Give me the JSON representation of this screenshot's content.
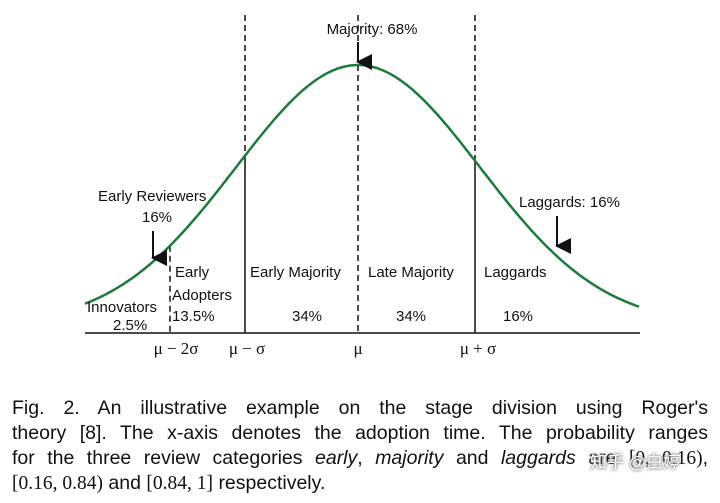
{
  "figure": {
    "majority": "Majority: 68%",
    "early_reviewers": [
      "Early Reviewers",
      "16%"
    ],
    "laggards_callout": "Laggards: 16%",
    "innovators": [
      "Innovators",
      "2.5%"
    ],
    "early_adopters": [
      "Early",
      "Adopters",
      "13.5%"
    ],
    "early_majority": [
      "Early Majority",
      "34%"
    ],
    "late_majority": [
      "Late Majority",
      "34%"
    ],
    "laggards": [
      "Laggards",
      "16%"
    ],
    "x_labels": [
      "μ − 2σ",
      "μ − σ",
      "μ",
      "μ + σ"
    ]
  },
  "caption": {
    "line1": "Fig. 2. An illustrative example on the stage division using Roger's",
    "line2": "theory [8]. The x-axis denotes the adoption time. The probability ranges",
    "line3": [
      "for the three review categories",
      "early",
      ",",
      "majority",
      "and",
      "laggards",
      "are",
      "[0, 0.16)",
      ","
    ],
    "line4": [
      "[0.16, 0.84)",
      "and",
      "[0.84, 1]",
      "respectively."
    ]
  },
  "watermark": "知乎 @白婷"
}
